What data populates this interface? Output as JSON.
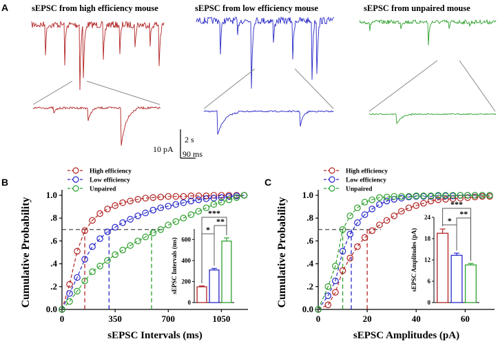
{
  "panel_letters": [
    "A",
    "B",
    "C"
  ],
  "colors": {
    "high": "#b22222",
    "low": "#2626c8",
    "unpaired": "#2ca02c",
    "axis": "#000000",
    "guide": "#333333"
  },
  "panel_a": {
    "trace_titles": [
      "sEPSC from high efficiency mouse",
      "sEPSC from low efficiency mouse",
      "sEPSC from unpaired mouse"
    ],
    "scale_bar": {
      "amplitude": "10 pA",
      "time_long": "2 s",
      "time_short": "90 ms"
    }
  },
  "chart_data": [
    {
      "type": "line",
      "panel": "B",
      "title": "",
      "xlabel": "sEPSC Intervals (ms)",
      "ylabel": "Cumulative Probability",
      "xlim": [
        0,
        1225
      ],
      "ylim": [
        0,
        1.0
      ],
      "xticks": [
        0,
        350,
        700,
        1050
      ],
      "xtick_labels": [
        "0",
        "350",
        "700",
        "1050"
      ],
      "yticks": [
        0,
        0.2,
        0.4,
        0.6,
        0.8,
        1.0
      ],
      "ytick_labels": [
        "0.0",
        ".2",
        ".4",
        ".6",
        ".8",
        "1.0"
      ],
      "legend": [
        "High efficiency",
        "Low efficiency",
        "Unpaired"
      ],
      "legend_position": "top-left",
      "x": [
        0,
        50,
        100,
        150,
        200,
        250,
        300,
        350,
        400,
        450,
        500,
        550,
        600,
        650,
        700,
        750,
        800,
        850,
        900,
        950,
        1000,
        1050,
        1100,
        1150,
        1200
      ],
      "series": [
        {
          "name": "High efficiency",
          "key": "high",
          "values": [
            0,
            0.22,
            0.51,
            0.69,
            0.78,
            0.84,
            0.88,
            0.91,
            0.935,
            0.95,
            0.965,
            0.975,
            0.98,
            0.985,
            0.99,
            0.99,
            0.99,
            0.995,
            0.995,
            0.995,
            1.0,
            1.0,
            1.0,
            1.0,
            1.0
          ]
        },
        {
          "name": "Low efficiency",
          "key": "low",
          "values": [
            0,
            0.14,
            0.28,
            0.44,
            0.55,
            0.62,
            0.68,
            0.72,
            0.76,
            0.79,
            0.82,
            0.845,
            0.87,
            0.89,
            0.905,
            0.92,
            0.935,
            0.95,
            0.96,
            0.97,
            0.975,
            0.98,
            0.99,
            0.995,
            1.0
          ]
        },
        {
          "name": "Unpaired",
          "key": "unpaired",
          "values": [
            0,
            0.07,
            0.16,
            0.25,
            0.33,
            0.38,
            0.43,
            0.48,
            0.52,
            0.56,
            0.6,
            0.635,
            0.67,
            0.7,
            0.74,
            0.77,
            0.8,
            0.83,
            0.86,
            0.89,
            0.92,
            0.94,
            0.96,
            0.98,
            1.0
          ]
        }
      ],
      "reference_line_y": 0.7,
      "median_markers": [
        {
          "key": "high",
          "x": 150
        },
        {
          "key": "low",
          "x": 310
        },
        {
          "key": "unpaired",
          "x": 590
        }
      ],
      "inset": {
        "type": "bar",
        "ylabel": "sEPSC Intervals (ms)",
        "ylim": [
          0,
          700
        ],
        "yticks": [
          0,
          200,
          400,
          600
        ],
        "ytick_labels": [
          "0",
          "200",
          "400",
          "600"
        ],
        "bars": [
          {
            "key": "high",
            "value": 150,
            "error": 8
          },
          {
            "key": "low",
            "value": 310,
            "error": 15
          },
          {
            "key": "unpaired",
            "value": 585,
            "error": 30
          }
        ],
        "significance": [
          {
            "label": "*",
            "from": 0,
            "to": 1,
            "level": 1
          },
          {
            "label": "**",
            "from": 1,
            "to": 2,
            "level": 2
          },
          {
            "label": "***",
            "from": 0,
            "to": 2,
            "level": 3
          }
        ]
      }
    },
    {
      "type": "line",
      "panel": "C",
      "title": "",
      "xlabel": "sEPSC Amplitudes (pA)",
      "ylabel": "Cumulative Probability",
      "xlim": [
        0,
        72
      ],
      "ylim": [
        0,
        1.0
      ],
      "xticks": [
        0,
        20,
        40,
        60
      ],
      "xtick_labels": [
        "0",
        "20",
        "40",
        "60"
      ],
      "yticks": [
        0,
        0.2,
        0.4,
        0.6,
        0.8,
        1.0
      ],
      "ytick_labels": [
        "0.0",
        ".2",
        ".4",
        ".6",
        ".8",
        "1.0"
      ],
      "legend": [
        "High efficiency",
        "Low efficiency",
        "Unpaired"
      ],
      "legend_position": "top-center",
      "x": [
        0,
        4,
        7,
        10,
        13,
        16,
        19,
        22,
        25,
        28,
        31,
        34,
        37,
        40,
        43,
        46,
        49,
        52,
        55,
        58,
        61,
        64,
        67,
        70
      ],
      "series": [
        {
          "name": "High efficiency",
          "key": "high",
          "values": [
            0,
            0.04,
            0.15,
            0.34,
            0.45,
            0.55,
            0.63,
            0.69,
            0.74,
            0.78,
            0.82,
            0.86,
            0.89,
            0.91,
            0.93,
            0.95,
            0.96,
            0.965,
            0.97,
            0.975,
            0.98,
            0.985,
            0.99,
            0.99
          ]
        },
        {
          "name": "Low efficiency",
          "key": "low",
          "values": [
            0,
            0.12,
            0.25,
            0.51,
            0.66,
            0.76,
            0.83,
            0.88,
            0.92,
            0.95,
            0.965,
            0.975,
            0.985,
            0.99,
            0.99,
            0.99,
            0.995,
            0.995,
            0.995,
            1.0,
            1.0,
            1.0,
            1.0,
            1.0
          ]
        },
        {
          "name": "Unpaired",
          "key": "unpaired",
          "values": [
            0,
            0.2,
            0.38,
            0.7,
            0.82,
            0.89,
            0.94,
            0.96,
            0.98,
            0.985,
            0.99,
            0.99,
            0.99,
            0.995,
            0.995,
            0.995,
            1.0,
            1.0,
            1.0,
            1.0,
            1.0,
            1.0,
            1.0,
            1.0
          ]
        }
      ],
      "reference_line_y": 0.7,
      "median_markers": [
        {
          "key": "unpaired",
          "x": 10
        },
        {
          "key": "low",
          "x": 13.5
        },
        {
          "key": "high",
          "x": 20
        }
      ],
      "inset": {
        "type": "bar",
        "ylabel": "sEPSC Amplitudes (pA)",
        "ylim": [
          0,
          24
        ],
        "yticks": [
          0,
          6,
          12,
          18,
          24
        ],
        "ytick_labels": [
          "0",
          "6",
          "12",
          "18",
          "24"
        ],
        "bars": [
          {
            "key": "high",
            "value": 19.5,
            "error": 1.2
          },
          {
            "key": "low",
            "value": 13.3,
            "error": 0.6
          },
          {
            "key": "unpaired",
            "value": 10.6,
            "error": 0.4
          }
        ],
        "significance": [
          {
            "label": "*",
            "from": 0,
            "to": 1,
            "level": 1
          },
          {
            "label": "**",
            "from": 1,
            "to": 2,
            "level": 2
          },
          {
            "label": "***",
            "from": 0,
            "to": 2,
            "level": 3
          }
        ]
      }
    }
  ]
}
